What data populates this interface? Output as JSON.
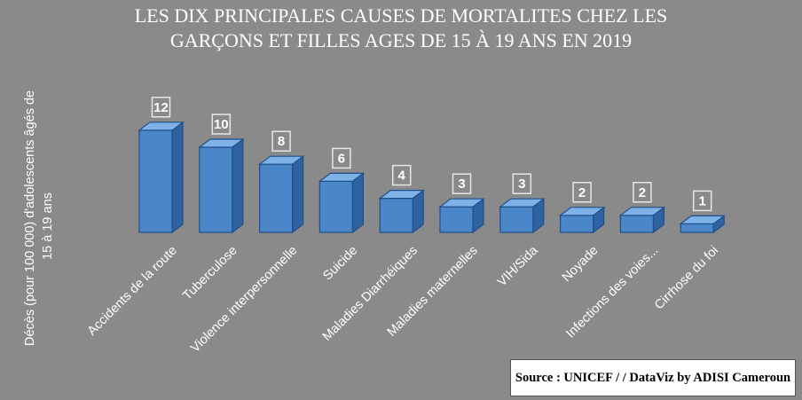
{
  "chart_data": {
    "type": "bar",
    "title_line1": "LES DIX PRINCIPALES CAUSES DE MORTALITES  CHEZ LES",
    "title_line2": "GARÇONS ET FILLES AGES DE 15 À 19 ANS EN 2019",
    "ylabel": "Décès (pour 100 000) d'adolescents âgés de 15 à 19 ans",
    "categories": [
      "Accidents de la route",
      "Tuberculose",
      "Violence interpersonnelle",
      "Suicide",
      "Maladies Diarrhéiques",
      "Maladies maternelles",
      "VIH/Sida",
      "Noyade",
      "Infections des voies...",
      "Cirrhose  du  foi"
    ],
    "values": [
      12,
      10,
      8,
      6,
      4,
      3,
      3,
      2,
      2,
      1
    ],
    "bar_colors": {
      "front": "#4a86c8",
      "top": "#7fb2e6",
      "side": "#2e62a0",
      "edge": "#1f4f8a"
    },
    "data_labels": true,
    "grid": false,
    "legend": "none",
    "source": "Source : UNICEF / / DataViz  by  ADISI Cameroun"
  }
}
